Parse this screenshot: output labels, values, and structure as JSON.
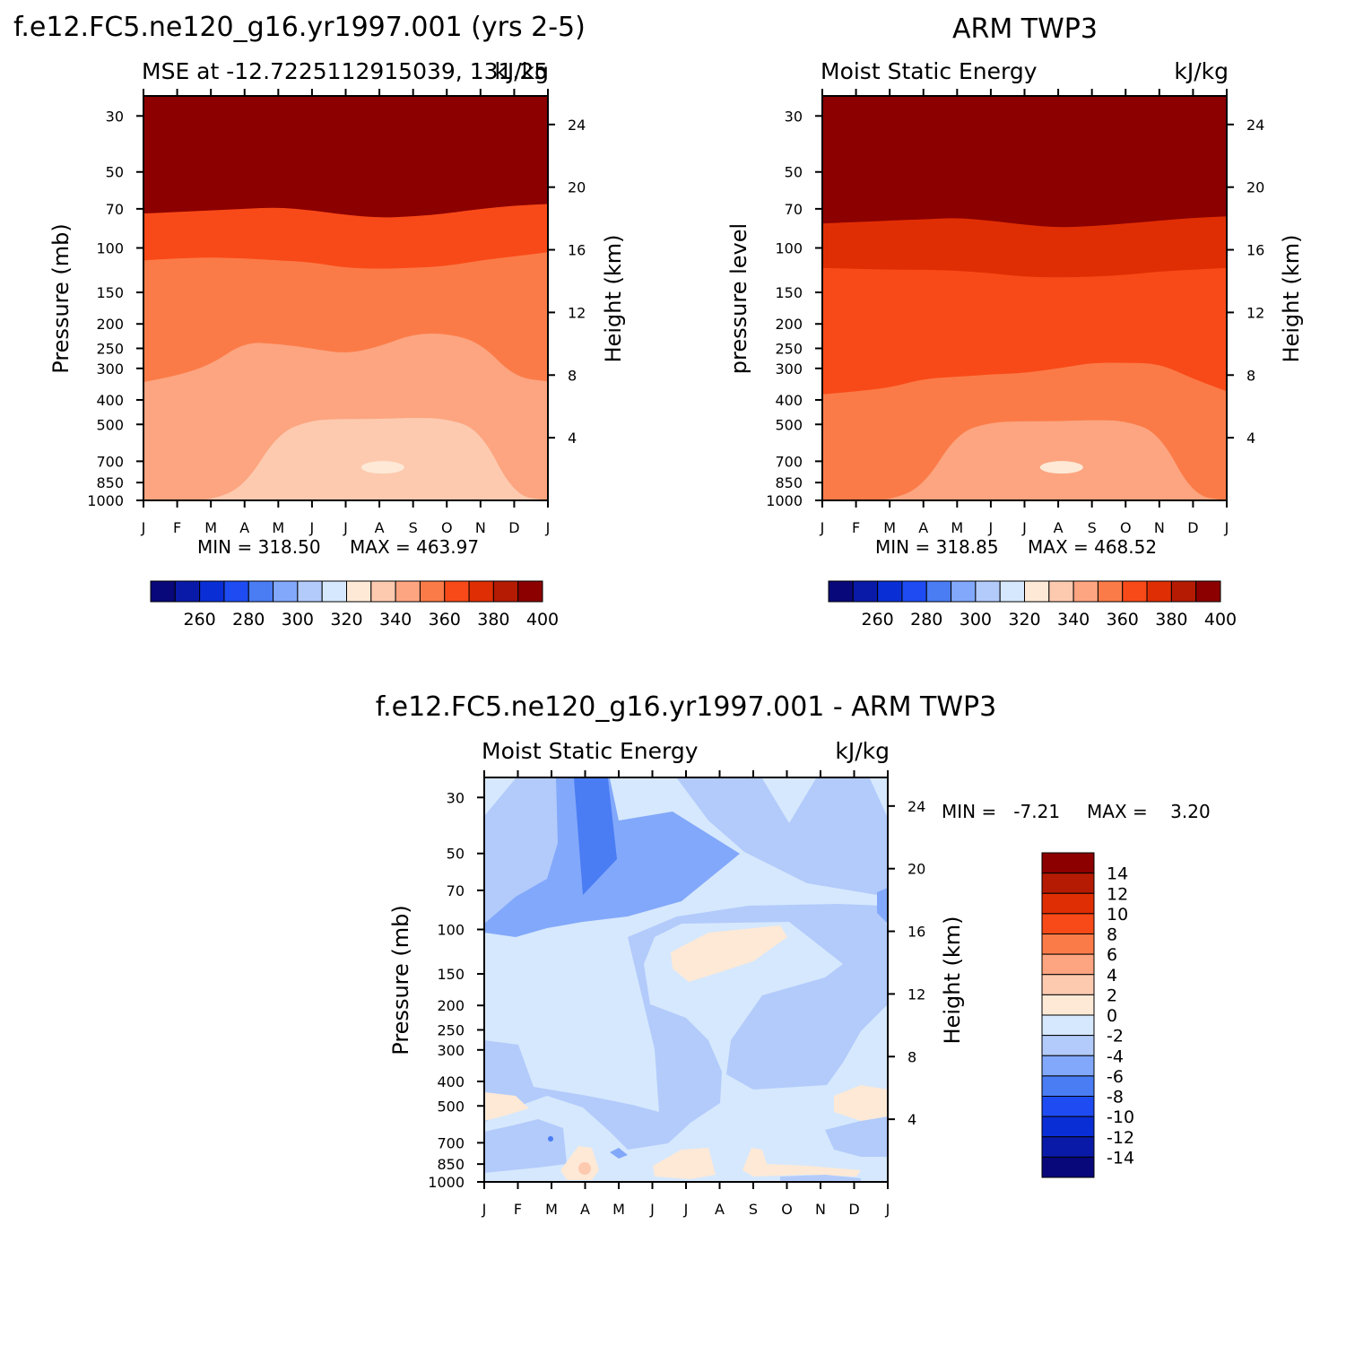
{
  "chart_data": [
    {
      "type": "heatmap",
      "header": "f.e12.FC5.ne120_g16.yr1997.001 (yrs 2-5)",
      "left_string": "MSE at -12.7225112915039, 131.25",
      "right_string": "kJ/kg",
      "ylabel": "Pressure (mb)",
      "y2label": "Height (km)",
      "xticks": [
        "J",
        "F",
        "M",
        "A",
        "M",
        "J",
        "J",
        "A",
        "S",
        "O",
        "N",
        "D",
        "J"
      ],
      "yticks": [
        30,
        50,
        70,
        100,
        150,
        200,
        250,
        300,
        400,
        500,
        700,
        850,
        1000
      ],
      "y2ticks": [
        24,
        20,
        16,
        12,
        8,
        4
      ],
      "ylim": [
        1000,
        25
      ],
      "stat_min": "MIN = 318.50",
      "stat_max": "MAX = 463.97",
      "bands": [
        {
          "boundary": [
            [
              0,
              122
            ],
            [
              1,
              120
            ],
            [
              2,
              118
            ],
            [
              3,
              117
            ],
            [
              4,
              116
            ],
            [
              5,
              118
            ],
            [
              6,
              121
            ],
            [
              7,
              123
            ],
            [
              8,
              122
            ],
            [
              9,
              120
            ],
            [
              10,
              118
            ],
            [
              11,
              116
            ],
            [
              12,
              114
            ]
          ],
          "value": 400
        },
        {
          "boundary": [
            [
              0,
              108
            ],
            [
              1,
              106
            ],
            [
              2,
              104
            ],
            [
              3,
              103
            ],
            [
              4,
              102
            ],
            [
              5,
              104
            ],
            [
              6,
              107
            ],
            [
              7,
              109
            ],
            [
              8,
              108
            ],
            [
              9,
              106
            ],
            [
              10,
              104
            ],
            [
              11,
              102
            ],
            [
              12,
              101
            ]
          ],
          "value": 390
        },
        {
          "boundary": [
            [
              0,
              97
            ],
            [
              1,
              96
            ],
            [
              2,
              94
            ],
            [
              3,
              93
            ],
            [
              4,
              93
            ],
            [
              5,
              94
            ],
            [
              6,
              97
            ],
            [
              7,
              99
            ],
            [
              8,
              98
            ],
            [
              9,
              96
            ],
            [
              10,
              94
            ],
            [
              11,
              93
            ],
            [
              12,
              91
            ]
          ],
          "value": 380
        },
        {
          "boundary": [
            [
              0,
              87
            ],
            [
              1,
              86
            ],
            [
              2,
              85
            ],
            [
              3,
              84
            ],
            [
              4,
              83
            ],
            [
              5,
              85
            ],
            [
              6,
              88
            ],
            [
              7,
              90
            ],
            [
              8,
              89
            ],
            [
              9,
              87
            ],
            [
              10,
              84
            ],
            [
              11,
              83
            ],
            [
              12,
              81
            ]
          ],
          "value": 370
        },
        {
          "boundary": [
            [
              0,
              73
            ],
            [
              1,
              72
            ],
            [
              2,
              71
            ],
            [
              3,
              70
            ],
            [
              4,
              69
            ],
            [
              5,
              71
            ],
            [
              6,
              74
            ],
            [
              7,
              76
            ],
            [
              8,
              75
            ],
            [
              9,
              73
            ],
            [
              10,
              70
            ],
            [
              11,
              68
            ],
            [
              12,
              67
            ]
          ],
          "value": 360
        },
        {
          "boundary": [
            [
              0,
              112
            ],
            [
              1,
              110
            ],
            [
              2,
              109
            ],
            [
              3,
              110
            ],
            [
              4,
              112
            ],
            [
              5,
              114
            ],
            [
              6,
              120
            ],
            [
              7,
              121
            ],
            [
              8,
              120
            ],
            [
              9,
              118
            ],
            [
              10,
              112
            ],
            [
              11,
              108
            ],
            [
              12,
              104
            ]
          ],
          "value": 350
        },
        {
          "boundary": [
            [
              0,
              340
            ],
            [
              1,
              320
            ],
            [
              2,
              290
            ],
            [
              3,
              236
            ],
            [
              4,
              240
            ],
            [
              5,
              250
            ],
            [
              6,
              263
            ],
            [
              7,
              246
            ],
            [
              8,
              219
            ],
            [
              9,
              218
            ],
            [
              10,
              237
            ],
            [
              11,
              325
            ],
            [
              12,
              338
            ]
          ],
          "value": 340
        },
        {
          "boundary": [
            [
              0,
              1000
            ],
            [
              1,
              1000
            ],
            [
              2,
              1000
            ],
            [
              3,
              880
            ],
            [
              4,
              540
            ],
            [
              5,
              480
            ],
            [
              6,
              476
            ],
            [
              7,
              476
            ],
            [
              8,
              470
            ],
            [
              9,
              474
            ],
            [
              10,
              527
            ],
            [
              11,
              960
            ],
            [
              12,
              1000
            ]
          ],
          "value": 330
        },
        {
          "boundary": [
            [
              0,
              1000
            ],
            [
              1,
              1000
            ],
            [
              2,
              1000
            ],
            [
              3,
              1000
            ],
            [
              4,
              1000
            ],
            [
              5,
              1000
            ],
            [
              6,
              1000
            ],
            [
              7,
              1000
            ],
            [
              8,
              1000
            ],
            [
              9,
              1000
            ],
            [
              10,
              1000
            ],
            [
              11,
              1000
            ],
            [
              12,
              1000
            ]
          ],
          "value": 320
        }
      ]
    },
    {
      "type": "heatmap",
      "header": "ARM TWP3",
      "left_string": "Moist Static Energy",
      "right_string": "kJ/kg",
      "ylabel": "pressure level",
      "y2label": "Height (km)",
      "xticks": [
        "J",
        "F",
        "M",
        "A",
        "M",
        "J",
        "J",
        "A",
        "S",
        "O",
        "N",
        "D",
        "J"
      ],
      "yticks": [
        30,
        50,
        70,
        100,
        150,
        200,
        250,
        300,
        400,
        500,
        700,
        850,
        1000
      ],
      "y2ticks": [
        24,
        20,
        16,
        12,
        8,
        4
      ],
      "ylim": [
        1000,
        25
      ],
      "stat_min": "MIN = 318.85",
      "stat_max": "MAX = 468.52",
      "bands": [
        {
          "boundary": [
            [
              0,
              114
            ],
            [
              1,
              113
            ],
            [
              2,
              112
            ],
            [
              3,
              111
            ],
            [
              4,
              110
            ],
            [
              5,
              112
            ],
            [
              6,
              115
            ],
            [
              7,
              117
            ],
            [
              8,
              116
            ],
            [
              9,
              114
            ],
            [
              10,
              112
            ],
            [
              11,
              110
            ],
            [
              12,
              108
            ]
          ],
          "value": 400
        },
        {
          "boundary": [
            [
              0,
              100
            ],
            [
              1,
              99
            ],
            [
              2,
              98
            ],
            [
              3,
              97
            ],
            [
              4,
              96
            ],
            [
              5,
              98
            ],
            [
              6,
              101
            ],
            [
              7,
              103
            ],
            [
              8,
              102
            ],
            [
              9,
              100
            ],
            [
              10,
              98
            ],
            [
              11,
              96
            ],
            [
              12,
              95
            ]
          ],
          "value": 390
        },
        {
          "boundary": [
            [
              0,
              90
            ],
            [
              1,
              89
            ],
            [
              2,
              88
            ],
            [
              3,
              87
            ],
            [
              4,
              86
            ],
            [
              5,
              88
            ],
            [
              6,
              91
            ],
            [
              7,
              93
            ],
            [
              8,
              92
            ],
            [
              9,
              90
            ],
            [
              10,
              88
            ],
            [
              11,
              86
            ],
            [
              12,
              85
            ]
          ],
          "value": 380
        },
        {
          "boundary": [
            [
              0,
              80
            ],
            [
              1,
              79
            ],
            [
              2,
              78
            ],
            [
              3,
              77
            ],
            [
              4,
              76
            ],
            [
              5,
              78
            ],
            [
              6,
              81
            ],
            [
              7,
              83
            ],
            [
              8,
              82
            ],
            [
              9,
              80
            ],
            [
              10,
              78
            ],
            [
              11,
              76
            ],
            [
              12,
              75
            ]
          ],
          "value": 370
        },
        {
          "boundary": [
            [
              0,
              120
            ],
            [
              1,
              121
            ],
            [
              2,
              122
            ],
            [
              3,
              122
            ],
            [
              4,
              123
            ],
            [
              5,
              126
            ],
            [
              6,
              130
            ],
            [
              7,
              131
            ],
            [
              8,
              130
            ],
            [
              9,
              128
            ],
            [
              10,
              124
            ],
            [
              11,
              122
            ],
            [
              12,
              120
            ]
          ],
          "value": 360
        },
        {
          "boundary": [
            [
              0,
              380
            ],
            [
              1,
              370
            ],
            [
              2,
              358
            ],
            [
              3,
              330
            ],
            [
              4,
              324
            ],
            [
              5,
              317
            ],
            [
              6,
              313
            ],
            [
              7,
              300
            ],
            [
              8,
              285
            ],
            [
              9,
              285
            ],
            [
              10,
              287
            ],
            [
              11,
              330
            ],
            [
              12,
              370
            ]
          ],
          "value": 350
        },
        {
          "boundary": [
            [
              0,
              1000
            ],
            [
              1,
              1000
            ],
            [
              2,
              1000
            ],
            [
              3,
              880
            ],
            [
              4,
              540
            ],
            [
              5,
              490
            ],
            [
              6,
              486
            ],
            [
              7,
              486
            ],
            [
              8,
              480
            ],
            [
              9,
              484
            ],
            [
              10,
              540
            ],
            [
              11,
              960
            ],
            [
              12,
              1000
            ]
          ],
          "value": 340
        },
        {
          "boundary": [
            [
              0,
              1000
            ],
            [
              1,
              1000
            ],
            [
              2,
              1000
            ],
            [
              3,
              1000
            ],
            [
              4,
              1000
            ],
            [
              5,
              1000
            ],
            [
              6,
              1000
            ],
            [
              7,
              1000
            ],
            [
              8,
              1000
            ],
            [
              9,
              1000
            ],
            [
              10,
              1000
            ],
            [
              11,
              1000
            ],
            [
              12,
              1000
            ]
          ],
          "value": 330
        }
      ]
    },
    {
      "type": "heatmap",
      "header": "f.e12.FC5.ne120_g16.yr1997.001 - ARM TWP3",
      "left_string": "Moist Static Energy",
      "right_string": "kJ/kg",
      "ylabel": "Pressure (mb)",
      "y2label": "Height (km)",
      "xticks": [
        "J",
        "F",
        "M",
        "A",
        "M",
        "J",
        "J",
        "A",
        "S",
        "O",
        "N",
        "D",
        "J"
      ],
      "yticks": [
        30,
        50,
        70,
        100,
        150,
        200,
        250,
        300,
        400,
        500,
        700,
        850,
        1000
      ],
      "y2ticks": [
        24,
        20,
        16,
        12,
        8,
        4
      ],
      "ylim": [
        1000,
        25
      ],
      "stat_min": "MIN =   -7.21",
      "stat_max": "MAX =    3.20"
    }
  ],
  "colorbar_top": {
    "labels": [
      "260",
      "280",
      "300",
      "320",
      "340",
      "360",
      "380",
      "400"
    ],
    "colors": [
      "#08087a",
      "#0a1aa8",
      "#0a2ed6",
      "#1e4cf2",
      "#4a7cf4",
      "#82a8fb",
      "#b2cbfb",
      "#d6e8fd",
      "#fde9d6",
      "#fdcaaf",
      "#fca580",
      "#fb7b48",
      "#f84a18",
      "#e02e04",
      "#b51a02",
      "#8c0000"
    ]
  },
  "colorbar_diff": {
    "labels": [
      "14",
      "12",
      "10",
      "8",
      "6",
      "4",
      "2",
      "0",
      "-2",
      "-4",
      "-6",
      "-8",
      "-10",
      "-12",
      "-14"
    ],
    "colors": [
      "#8c0000",
      "#b51a02",
      "#e02e04",
      "#f84a18",
      "#fb7b48",
      "#fca580",
      "#fdcaaf",
      "#fde9d6",
      "#d6e8fd",
      "#b2cbfb",
      "#82a8fb",
      "#4a7cf4",
      "#1e4cf2",
      "#0a2ed6",
      "#0a1aa8",
      "#08087a"
    ]
  }
}
